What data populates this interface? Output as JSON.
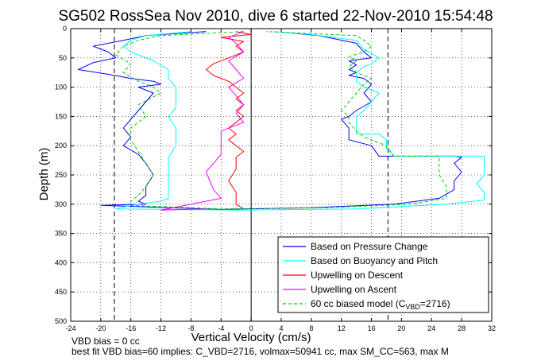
{
  "chart_data": {
    "type": "line",
    "title": "SG502 RossSea Nov 2010, dive 6 started 22-Nov-2010 15:54:48",
    "xlabel": "Vertical Velocity (cm/s)",
    "ylabel": "Depth (m)",
    "xlim": [
      -24,
      32
    ],
    "ylim": [
      500,
      0
    ],
    "y_reversed": true,
    "grid": true,
    "legend_position": "bottom-right",
    "x_ticks": [
      "-24",
      "-20",
      "-16",
      "-12",
      "-8",
      "-4",
      "0",
      "4",
      "8",
      "12",
      "16",
      "20",
      "24",
      "28",
      "32"
    ],
    "x_tick_values": [
      -24,
      -20,
      -16,
      -12,
      -8,
      -4,
      0,
      4,
      8,
      12,
      16,
      20,
      24,
      28,
      32
    ],
    "y_ticks": [
      "0",
      "50",
      "100",
      "150",
      "200",
      "250",
      "300",
      "350",
      "400",
      "450",
      "500"
    ],
    "y_tick_values": [
      0,
      50,
      100,
      150,
      200,
      250,
      300,
      350,
      400,
      450,
      500
    ],
    "reference_lines": [
      {
        "axis": "x",
        "value": -18.2,
        "style": "dashed",
        "color": "#000000"
      },
      {
        "axis": "x",
        "value": 18.2,
        "style": "dashed",
        "color": "#000000"
      },
      {
        "axis": "x",
        "value": 0,
        "style": "solid",
        "color": "#000000"
      }
    ],
    "series": [
      {
        "name": "Based on Pressure Change",
        "color": "#0000ff",
        "dash": "solid",
        "x": [
          -6,
          -14,
          -17,
          -21,
          -19,
          -18,
          -21,
          -23,
          -19,
          -16,
          -13,
          -12,
          -15,
          -13,
          -14,
          -15,
          -16,
          -17,
          -16,
          -17,
          -15,
          -14,
          -13,
          -14,
          -14,
          -15,
          -14,
          -20,
          -4,
          8,
          19,
          25,
          27,
          27,
          28,
          27,
          28,
          27,
          24,
          17,
          16,
          13,
          13,
          12,
          13,
          14,
          16,
          15,
          16,
          15,
          13,
          14,
          13,
          14,
          13,
          16,
          15,
          14,
          9,
          4
        ],
        "y": [
          5,
          12,
          20,
          30,
          40,
          50,
          58,
          70,
          78,
          85,
          90,
          95,
          100,
          110,
          125,
          140,
          155,
          170,
          185,
          200,
          215,
          230,
          250,
          270,
          285,
          295,
          300,
          302,
          309,
          306,
          300,
          290,
          275,
          260,
          245,
          230,
          220,
          218,
          218,
          218,
          200,
          190,
          170,
          155,
          150,
          140,
          125,
          110,
          95,
          85,
          80,
          75,
          70,
          62,
          55,
          50,
          40,
          25,
          12,
          6
        ]
      },
      {
        "name": "Based on Buoyancy and Pitch",
        "color": "#00ffff",
        "dash": "solid",
        "x": [
          -8,
          -14,
          -16,
          -17,
          -16,
          -13,
          -11,
          -11,
          -10,
          -10,
          -10,
          -11,
          -10,
          -10,
          -10,
          -11,
          -11,
          -11,
          -11,
          -11,
          -11,
          -12,
          -15,
          -17,
          -18,
          -1,
          14,
          26,
          31,
          31,
          30,
          31,
          31,
          31,
          31,
          26,
          19,
          18,
          18,
          17,
          14,
          14,
          14,
          15,
          16,
          17,
          15,
          14,
          14,
          15,
          16,
          17,
          15,
          14,
          8,
          3
        ],
        "y": [
          5,
          12,
          20,
          30,
          40,
          55,
          70,
          85,
          100,
          120,
          135,
          150,
          170,
          185,
          200,
          220,
          240,
          260,
          275,
          285,
          290,
          295,
          300,
          305,
          308,
          310,
          308,
          300,
          293,
          280,
          265,
          250,
          235,
          222,
          218,
          218,
          218,
          205,
          190,
          180,
          180,
          160,
          150,
          140,
          125,
          110,
          100,
          90,
          75,
          65,
          60,
          50,
          35,
          20,
          10,
          5
        ]
      },
      {
        "name": "Upwelling on Descent",
        "color": "#ff0000",
        "dash": "solid",
        "x": [
          -2,
          0,
          -4,
          -1,
          -2,
          -1,
          -3,
          -5,
          -6,
          -5,
          -3,
          -2,
          -1,
          -2,
          -1,
          -2,
          -1,
          -2,
          -3,
          -2,
          -3,
          -2,
          -1,
          -2,
          -2,
          -3,
          -2,
          -2,
          -1
        ],
        "y": [
          5,
          10,
          15,
          22,
          30,
          40,
          50,
          60,
          70,
          80,
          90,
          100,
          110,
          120,
          130,
          140,
          150,
          160,
          170,
          180,
          190,
          200,
          210,
          220,
          240,
          260,
          280,
          300,
          308
        ]
      },
      {
        "name": "Upwelling on Ascent",
        "color": "#ff00ff",
        "dash": "solid",
        "x": [
          -1,
          -3,
          -2,
          -1,
          -3,
          -2,
          -1,
          -3,
          -2,
          -1,
          -2,
          -1,
          -4,
          -4,
          -6,
          -5,
          -4,
          -12,
          -6
        ],
        "y": [
          5,
          15,
          25,
          40,
          55,
          70,
          85,
          100,
          115,
          130,
          145,
          160,
          175,
          215,
          245,
          275,
          290,
          310,
          308
        ]
      },
      {
        "name": "60 cc biased model (C_VBD=2716)",
        "color": "#00cc00",
        "dash": "dashed",
        "x": [
          -1,
          -12,
          -15,
          -17,
          -18,
          -16,
          -17,
          -15,
          -13,
          -12,
          -15,
          -14,
          -16,
          -16,
          -15,
          -14,
          -13,
          -14,
          -15,
          -16,
          -16,
          -4,
          10,
          21,
          26,
          26,
          25,
          25,
          19,
          18,
          15,
          14,
          13,
          13,
          12,
          13,
          14,
          15,
          16,
          14,
          13,
          14,
          13,
          15,
          16,
          15,
          14,
          2
        ],
        "y": [
          5,
          12,
          20,
          30,
          45,
          60,
          75,
          90,
          100,
          110,
          130,
          150,
          170,
          190,
          210,
          230,
          250,
          270,
          285,
          295,
          302,
          308,
          306,
          300,
          290,
          270,
          250,
          218,
          218,
          200,
          185,
          175,
          160,
          150,
          140,
          125,
          110,
          95,
          85,
          75,
          65,
          55,
          48,
          40,
          30,
          20,
          12,
          5
        ]
      }
    ]
  },
  "legend": {
    "items": [
      "Based on Pressure Change",
      "Based on Buoyancy and Pitch",
      "Upwelling on Descent",
      "Upwelling on Ascent",
      "60 cc biased model (C"
    ],
    "model_sub": "VBD",
    "model_tail": "=2716)"
  },
  "footer": {
    "line1": "VBD bias = 0 cc",
    "line2": "best fit VBD bias=60 implies: C_VBD=2716, volmax=50941 cc, max SM_CC=563, max M"
  }
}
